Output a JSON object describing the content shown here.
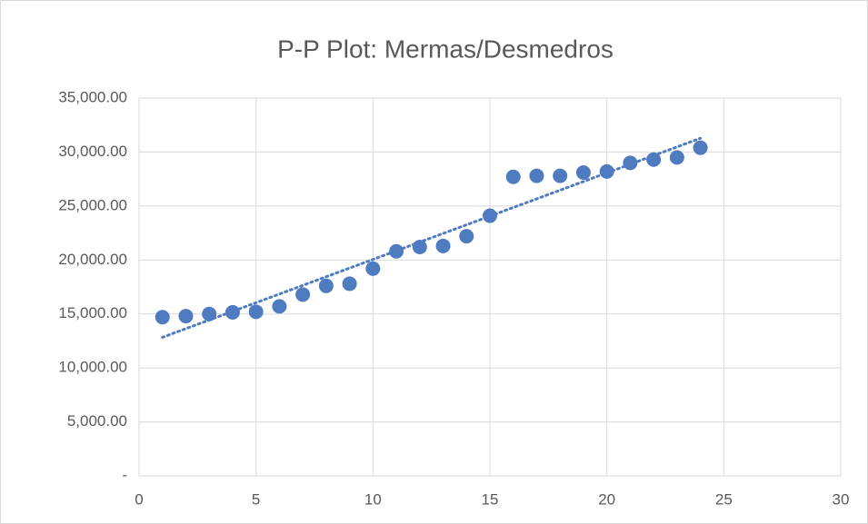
{
  "chart_data": {
    "type": "scatter",
    "title": "P-P Plot: Mermas/Desmedros",
    "x": [
      1,
      2,
      3,
      4,
      5,
      6,
      7,
      8,
      9,
      10,
      11,
      12,
      13,
      14,
      15,
      16,
      17,
      18,
      19,
      20,
      21,
      22,
      23,
      24
    ],
    "series": [
      {
        "color": "#4f7cc0",
        "values": [
          14700,
          14800,
          15000,
          15150,
          15200,
          15700,
          16800,
          17600,
          17800,
          19200,
          20800,
          21200,
          21300,
          22200,
          24100,
          27700,
          27800,
          27800,
          28100,
          28200,
          29000,
          29300,
          29500,
          30400
        ]
      }
    ],
    "trendline": "linear",
    "xlim": [
      0,
      30
    ],
    "xticks": [
      0,
      5,
      10,
      15,
      20,
      25,
      30
    ],
    "ylim": [
      0,
      35000
    ],
    "yticks": [
      {
        "value": 0,
        "label": "-"
      },
      {
        "value": 5000,
        "label": "5,000.00"
      },
      {
        "value": 10000,
        "label": "10,000.00"
      },
      {
        "value": 15000,
        "label": "15,000.00"
      },
      {
        "value": 20000,
        "label": "20,000.00"
      },
      {
        "value": 25000,
        "label": "25,000.00"
      },
      {
        "value": 30000,
        "label": "30,000.00"
      },
      {
        "value": 35000,
        "label": "35,000.00"
      }
    ],
    "grid": true
  }
}
